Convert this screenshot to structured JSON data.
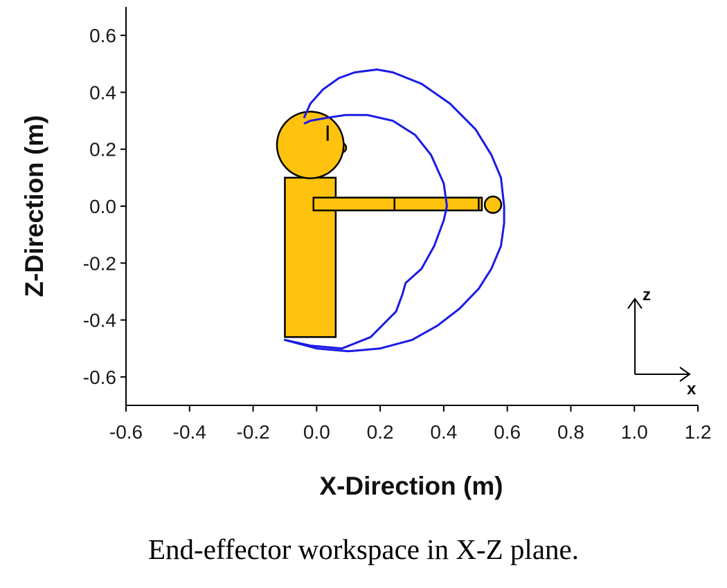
{
  "caption": "End-effector workspace in X-Z plane.",
  "colors": {
    "figure_fill": "#FFC20E",
    "figure_stroke": "#000000",
    "workspace": "#1A1AE6",
    "axis": "#000000"
  },
  "chart_data": {
    "type": "line",
    "title": "",
    "xlabel": "X-Direction (m)",
    "ylabel": "Z-Direction (m)",
    "xlim": [
      -0.6,
      1.2
    ],
    "ylim": [
      -0.7,
      0.7
    ],
    "xticks": [
      -0.6,
      -0.4,
      -0.2,
      0.0,
      0.2,
      0.4,
      0.6,
      0.8,
      1.0,
      1.2
    ],
    "yticks": [
      -0.6,
      -0.4,
      -0.2,
      0.0,
      0.2,
      0.4,
      0.6
    ],
    "xtick_labels": [
      "-0.6",
      "-0.4",
      "-0.2",
      "0.0",
      "0.2",
      "0.4",
      "0.6",
      "0.8",
      "1.0",
      "1.2"
    ],
    "ytick_labels": [
      "-0.6",
      "-0.4",
      "-0.2",
      "0.0",
      "0.2",
      "0.4",
      "0.6"
    ],
    "grid": false,
    "series": [
      {
        "color": "#1A1AE6",
        "x": [
          -0.04,
          -0.02,
          0.02,
          0.07,
          0.12,
          0.19,
          0.24,
          0.33,
          0.42,
          0.5,
          0.55,
          0.58,
          0.59,
          0.59,
          0.58,
          0.55,
          0.51,
          0.45,
          0.38,
          0.3,
          0.2,
          0.1,
          0.0,
          -0.1,
          -0.02,
          0.08,
          0.17,
          0.25,
          0.27,
          0.28,
          0.33,
          0.37,
          0.4,
          0.41,
          0.4,
          0.36,
          0.31,
          0.24,
          0.16,
          0.09,
          0.03,
          -0.02,
          -0.04
        ],
        "y": [
          0.31,
          0.36,
          0.41,
          0.45,
          0.47,
          0.48,
          0.47,
          0.43,
          0.36,
          0.27,
          0.18,
          0.1,
          0.0,
          -0.06,
          -0.14,
          -0.22,
          -0.29,
          -0.36,
          -0.42,
          -0.47,
          -0.5,
          -0.51,
          -0.5,
          -0.47,
          -0.49,
          -0.5,
          -0.46,
          -0.37,
          -0.31,
          -0.27,
          -0.22,
          -0.14,
          -0.05,
          0.0,
          0.08,
          0.18,
          0.25,
          0.3,
          0.32,
          0.32,
          0.31,
          0.3,
          0.29
        ]
      }
    ],
    "figure": {
      "torso": {
        "x0": -0.1,
        "x1": 0.06,
        "z0": -0.46,
        "z1": 0.1
      },
      "head": {
        "cx": -0.02,
        "cz": 0.215,
        "r": 0.105
      },
      "arm": {
        "x0": -0.01,
        "x1": 0.52,
        "z0": -0.015,
        "z1": 0.03,
        "joints": [
          0.245,
          0.51
        ]
      },
      "hand": {
        "cx": 0.555,
        "cz": 0.005,
        "r": 0.026
      }
    },
    "frame_labels": {
      "vertical": "z",
      "horizontal": "x"
    }
  }
}
